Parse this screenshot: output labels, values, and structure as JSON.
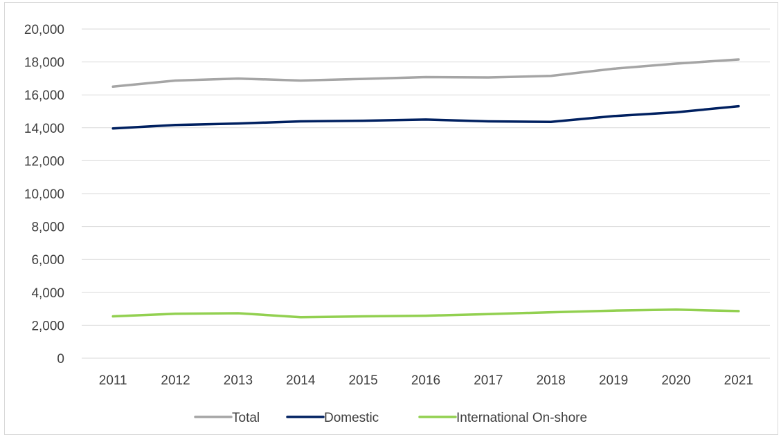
{
  "chart_data": {
    "type": "line",
    "title": "",
    "xlabel": "",
    "ylabel": "",
    "x": [
      "2011",
      "2012",
      "2013",
      "2014",
      "2015",
      "2016",
      "2017",
      "2018",
      "2019",
      "2020",
      "2021"
    ],
    "ylim": [
      0,
      20000
    ],
    "yticks": [
      0,
      2000,
      4000,
      6000,
      8000,
      10000,
      12000,
      14000,
      16000,
      18000,
      20000
    ],
    "ytick_labels": [
      "0",
      "2,000",
      "4,000",
      "6,000",
      "8,000",
      "10,000",
      "12,000",
      "14,000",
      "16,000",
      "18,000",
      "20,000"
    ],
    "grid": true,
    "legend_position": "bottom",
    "series": [
      {
        "name": "Total",
        "color": "#a5a5a5",
        "values": [
          16500,
          16870,
          16990,
          16870,
          16970,
          17080,
          17060,
          17150,
          17590,
          17900,
          18150
        ]
      },
      {
        "name": "Domestic",
        "color": "#002060",
        "values": [
          13960,
          14170,
          14260,
          14390,
          14430,
          14500,
          14390,
          14360,
          14710,
          14940,
          15310
        ]
      },
      {
        "name": "International On-shore",
        "color": "#92d050",
        "values": [
          2540,
          2700,
          2730,
          2490,
          2540,
          2580,
          2680,
          2790,
          2890,
          2950,
          2860
        ]
      }
    ]
  }
}
